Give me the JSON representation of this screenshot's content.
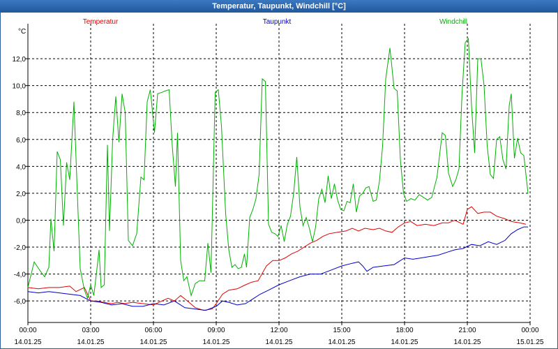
{
  "window": {
    "title": "Temperatur, Taupunkt, Windchill [°C]"
  },
  "chart_data": {
    "type": "line",
    "title": "Temperatur, Taupunkt, Windchill [°C]",
    "ylabel": "°C",
    "xlabel": "",
    "ylim": [
      -7.6,
      14.6
    ],
    "xlim_hours": [
      0,
      24
    ],
    "grid": true,
    "y_ticks": [
      -6,
      -4,
      -2,
      0,
      2,
      4,
      6,
      8,
      10,
      12
    ],
    "y_tick_labels": [
      "-6,0",
      "-4,0",
      "-2,0",
      "0,0",
      "2,0",
      "4,0",
      "6,0",
      "8,0",
      "10,0",
      "12,0"
    ],
    "x_ticks": [
      {
        "hour": 0,
        "time": "00:00",
        "date": "14.01.25"
      },
      {
        "hour": 3,
        "time": "03:00",
        "date": "14.01.25"
      },
      {
        "hour": 6,
        "time": "06:00",
        "date": "14.01.25"
      },
      {
        "hour": 9,
        "time": "09:00",
        "date": "14.01.25"
      },
      {
        "hour": 12,
        "time": "12:00",
        "date": "14.01.25"
      },
      {
        "hour": 15,
        "time": "15:00",
        "date": "14.01.25"
      },
      {
        "hour": 18,
        "time": "18:00",
        "date": "14.01.25"
      },
      {
        "hour": 21,
        "time": "21:00",
        "date": "14.01.25"
      },
      {
        "hour": 24,
        "time": "00:00",
        "date": "15.01.25"
      }
    ],
    "series": [
      {
        "name": "Temperatur",
        "color": "#e00000",
        "points": [
          [
            0,
            -5.0
          ],
          [
            0.5,
            -5.1
          ],
          [
            1.0,
            -5.0
          ],
          [
            1.5,
            -5.0
          ],
          [
            2.0,
            -4.9
          ],
          [
            2.3,
            -5.3
          ],
          [
            2.7,
            -5.0
          ],
          [
            3.0,
            -6.0
          ],
          [
            3.3,
            -6.0
          ],
          [
            3.6,
            -6.1
          ],
          [
            4.0,
            -6.2
          ],
          [
            4.3,
            -6.1
          ],
          [
            4.6,
            -6.2
          ],
          [
            5.0,
            -6.1
          ],
          [
            5.5,
            -6.2
          ],
          [
            6.0,
            -6.3
          ],
          [
            6.4,
            -6.0
          ],
          [
            6.7,
            -5.8
          ],
          [
            7.0,
            -6.0
          ],
          [
            7.3,
            -5.6
          ],
          [
            7.7,
            -6.1
          ],
          [
            8.0,
            -6.5
          ],
          [
            8.4,
            -6.7
          ],
          [
            8.8,
            -6.6
          ],
          [
            9.0,
            -6.2
          ],
          [
            9.3,
            -5.5
          ],
          [
            9.6,
            -5.2
          ],
          [
            10.0,
            -5.1
          ],
          [
            10.4,
            -4.8
          ],
          [
            10.7,
            -4.6
          ],
          [
            11.0,
            -4.5
          ],
          [
            11.4,
            -3.4
          ],
          [
            11.7,
            -3.0
          ],
          [
            12.0,
            -3.0
          ],
          [
            12.3,
            -2.8
          ],
          [
            12.6,
            -2.5
          ],
          [
            12.9,
            -2.3
          ],
          [
            13.2,
            -2.0
          ],
          [
            13.5,
            -1.7
          ],
          [
            13.8,
            -1.5
          ],
          [
            14.1,
            -1.2
          ],
          [
            14.4,
            -1.0
          ],
          [
            14.8,
            -0.9
          ],
          [
            15.2,
            -0.8
          ],
          [
            15.5,
            -0.6
          ],
          [
            15.8,
            -0.8
          ],
          [
            16.1,
            -0.6
          ],
          [
            16.5,
            -0.7
          ],
          [
            16.8,
            -0.6
          ],
          [
            17.1,
            -0.8
          ],
          [
            17.4,
            -0.9
          ],
          [
            17.7,
            -0.5
          ],
          [
            18.0,
            -0.2
          ],
          [
            18.3,
            -0.1
          ],
          [
            18.6,
            -0.4
          ],
          [
            19.0,
            -0.3
          ],
          [
            19.4,
            -0.4
          ],
          [
            19.8,
            -0.2
          ],
          [
            20.1,
            -0.2
          ],
          [
            20.4,
            0.0
          ],
          [
            20.8,
            -0.3
          ],
          [
            21.0,
            0.8
          ],
          [
            21.2,
            1.0
          ],
          [
            21.5,
            0.5
          ],
          [
            21.8,
            0.6
          ],
          [
            22.1,
            0.6
          ],
          [
            22.4,
            0.3
          ],
          [
            22.8,
            0.1
          ],
          [
            23.1,
            -0.1
          ],
          [
            23.5,
            -0.2
          ],
          [
            23.8,
            -0.3
          ]
        ]
      },
      {
        "name": "Taupunkt",
        "color": "#0000c8",
        "points": [
          [
            0,
            -5.3
          ],
          [
            0.5,
            -5.4
          ],
          [
            1.0,
            -5.3
          ],
          [
            1.5,
            -5.4
          ],
          [
            2.0,
            -5.5
          ],
          [
            2.5,
            -5.6
          ],
          [
            3.0,
            -6.0
          ],
          [
            3.5,
            -6.1
          ],
          [
            4.0,
            -6.3
          ],
          [
            4.5,
            -6.2
          ],
          [
            5.0,
            -6.4
          ],
          [
            5.5,
            -6.4
          ],
          [
            6.0,
            -6.2
          ],
          [
            6.5,
            -6.3
          ],
          [
            7.0,
            -6.0
          ],
          [
            7.5,
            -6.5
          ],
          [
            8.0,
            -6.6
          ],
          [
            8.5,
            -6.7
          ],
          [
            9.0,
            -6.4
          ],
          [
            9.3,
            -6.0
          ],
          [
            9.6,
            -6.1
          ],
          [
            10.0,
            -6.3
          ],
          [
            10.4,
            -6.2
          ],
          [
            10.8,
            -5.8
          ],
          [
            11.1,
            -5.5
          ],
          [
            11.5,
            -5.2
          ],
          [
            12.0,
            -4.8
          ],
          [
            12.5,
            -4.5
          ],
          [
            13.0,
            -4.2
          ],
          [
            13.5,
            -4.0
          ],
          [
            14.0,
            -4.0
          ],
          [
            14.5,
            -3.7
          ],
          [
            15.0,
            -3.4
          ],
          [
            15.5,
            -3.2
          ],
          [
            15.8,
            -3.1
          ],
          [
            16.0,
            -3.4
          ],
          [
            16.2,
            -3.8
          ],
          [
            16.5,
            -3.5
          ],
          [
            17.0,
            -3.4
          ],
          [
            17.5,
            -3.3
          ],
          [
            18.0,
            -2.8
          ],
          [
            18.4,
            -2.9
          ],
          [
            18.8,
            -2.8
          ],
          [
            19.2,
            -2.7
          ],
          [
            19.6,
            -2.6
          ],
          [
            20.0,
            -2.4
          ],
          [
            20.4,
            -2.2
          ],
          [
            20.8,
            -2.1
          ],
          [
            21.2,
            -1.8
          ],
          [
            21.6,
            -1.9
          ],
          [
            22.0,
            -1.6
          ],
          [
            22.4,
            -1.8
          ],
          [
            22.8,
            -1.5
          ],
          [
            23.1,
            -1.0
          ],
          [
            23.4,
            -0.7
          ],
          [
            23.7,
            -0.5
          ],
          [
            23.9,
            -0.5
          ]
        ]
      },
      {
        "name": "Windchill",
        "color": "#00b000",
        "points": [
          [
            0,
            -5.0
          ],
          [
            0.3,
            -3.1
          ],
          [
            0.6,
            -3.8
          ],
          [
            0.8,
            -4.2
          ],
          [
            1.0,
            -3.5
          ],
          [
            1.1,
            0.1
          ],
          [
            1.25,
            -2.3
          ],
          [
            1.4,
            5.1
          ],
          [
            1.55,
            4.5
          ],
          [
            1.7,
            -0.4
          ],
          [
            1.85,
            4.3
          ],
          [
            2.0,
            3.0
          ],
          [
            2.2,
            8.8
          ],
          [
            2.35,
            2.5
          ],
          [
            2.5,
            -3.6
          ],
          [
            2.7,
            -5.2
          ],
          [
            2.85,
            -5.8
          ],
          [
            3.0,
            -4.8
          ],
          [
            3.15,
            -5.6
          ],
          [
            3.3,
            -3.6
          ],
          [
            3.4,
            -2.2
          ],
          [
            3.5,
            -5.0
          ],
          [
            3.65,
            -4.8
          ],
          [
            3.8,
            5.6
          ],
          [
            3.9,
            -0.8
          ],
          [
            4.05,
            6.0
          ],
          [
            4.2,
            9.2
          ],
          [
            4.35,
            5.8
          ],
          [
            4.5,
            9.4
          ],
          [
            4.65,
            8.0
          ],
          [
            4.8,
            -1.5
          ],
          [
            5.0,
            -1.9
          ],
          [
            5.2,
            -1.0
          ],
          [
            5.4,
            3.2
          ],
          [
            5.55,
            3.0
          ],
          [
            5.7,
            8.8
          ],
          [
            5.85,
            9.7
          ],
          [
            6.05,
            6.5
          ],
          [
            6.2,
            9.4
          ],
          [
            6.4,
            9.5
          ],
          [
            6.55,
            9.6
          ],
          [
            6.75,
            9.7
          ],
          [
            6.9,
            5.5
          ],
          [
            7.05,
            2.5
          ],
          [
            7.15,
            6.5
          ],
          [
            7.3,
            -3.0
          ],
          [
            7.45,
            -4.5
          ],
          [
            7.6,
            -4.2
          ],
          [
            7.8,
            -5.6
          ],
          [
            8.0,
            -4.7
          ],
          [
            8.2,
            -4.5
          ],
          [
            8.45,
            -4.5
          ],
          [
            8.6,
            -1.7
          ],
          [
            8.75,
            -3.9
          ],
          [
            8.95,
            9.5
          ],
          [
            9.1,
            9.7
          ],
          [
            9.25,
            7.0
          ],
          [
            9.45,
            0.5
          ],
          [
            9.6,
            -2.2
          ],
          [
            9.75,
            -3.5
          ],
          [
            9.9,
            -3.3
          ],
          [
            10.05,
            -3.6
          ],
          [
            10.2,
            -3.5
          ],
          [
            10.35,
            -2.5
          ],
          [
            10.45,
            -3.5
          ],
          [
            10.6,
            0.2
          ],
          [
            10.75,
            0.8
          ],
          [
            10.9,
            1.6
          ],
          [
            11.05,
            3.4
          ],
          [
            11.2,
            10.5
          ],
          [
            11.35,
            10.3
          ],
          [
            11.5,
            -0.3
          ],
          [
            11.65,
            -0.9
          ],
          [
            11.8,
            -1.0
          ],
          [
            11.95,
            -1.2
          ],
          [
            12.1,
            -0.4
          ],
          [
            12.25,
            -1.6
          ],
          [
            12.4,
            -0.3
          ],
          [
            12.55,
            0.3
          ],
          [
            12.7,
            2.0
          ],
          [
            12.85,
            4.7
          ],
          [
            13.0,
            1.0
          ],
          [
            13.15,
            -0.4
          ],
          [
            13.3,
            0.2
          ],
          [
            13.45,
            -0.6
          ],
          [
            13.6,
            -1.6
          ],
          [
            13.75,
            -0.5
          ],
          [
            13.9,
            1.6
          ],
          [
            14.05,
            2.3
          ],
          [
            14.2,
            1.3
          ],
          [
            14.35,
            3.3
          ],
          [
            14.5,
            1.6
          ],
          [
            14.65,
            2.7
          ],
          [
            14.8,
            1.5
          ],
          [
            14.95,
            0.8
          ],
          [
            15.1,
            0.7
          ],
          [
            15.25,
            1.4
          ],
          [
            15.4,
            1.3
          ],
          [
            15.55,
            2.7
          ],
          [
            15.7,
            0.6
          ],
          [
            15.85,
            1.8
          ],
          [
            16.0,
            2.0
          ],
          [
            16.15,
            2.4
          ],
          [
            16.3,
            2.5
          ],
          [
            16.5,
            1.4
          ],
          [
            16.65,
            1.5
          ],
          [
            16.8,
            2.9
          ],
          [
            16.95,
            5.5
          ],
          [
            17.1,
            10.5
          ],
          [
            17.3,
            12.8
          ],
          [
            17.5,
            9.8
          ],
          [
            17.65,
            9.6
          ],
          [
            17.8,
            4.5
          ],
          [
            17.95,
            2.0
          ],
          [
            18.1,
            1.4
          ],
          [
            18.3,
            1.6
          ],
          [
            18.5,
            1.5
          ],
          [
            18.7,
            1.9
          ],
          [
            18.9,
            1.7
          ],
          [
            19.1,
            1.5
          ],
          [
            19.3,
            1.7
          ],
          [
            19.55,
            3.2
          ],
          [
            19.8,
            6.5
          ],
          [
            19.95,
            6.3
          ],
          [
            20.1,
            3.5
          ],
          [
            20.3,
            2.5
          ],
          [
            20.45,
            3.0
          ],
          [
            20.6,
            3.8
          ],
          [
            20.75,
            9.5
          ],
          [
            20.9,
            13.2
          ],
          [
            21.05,
            13.5
          ],
          [
            21.2,
            8.5
          ],
          [
            21.35,
            5.0
          ],
          [
            21.5,
            12.0
          ],
          [
            21.65,
            12.0
          ],
          [
            21.8,
            10.0
          ],
          [
            21.95,
            5.5
          ],
          [
            22.1,
            3.4
          ],
          [
            22.25,
            3.1
          ],
          [
            22.4,
            6.0
          ],
          [
            22.55,
            6.2
          ],
          [
            22.7,
            4.5
          ],
          [
            22.85,
            3.8
          ],
          [
            23.0,
            8.5
          ],
          [
            23.1,
            9.4
          ],
          [
            23.25,
            4.6
          ],
          [
            23.4,
            6.1
          ],
          [
            23.55,
            5.0
          ],
          [
            23.7,
            4.8
          ],
          [
            23.9,
            2.0
          ]
        ]
      }
    ]
  }
}
